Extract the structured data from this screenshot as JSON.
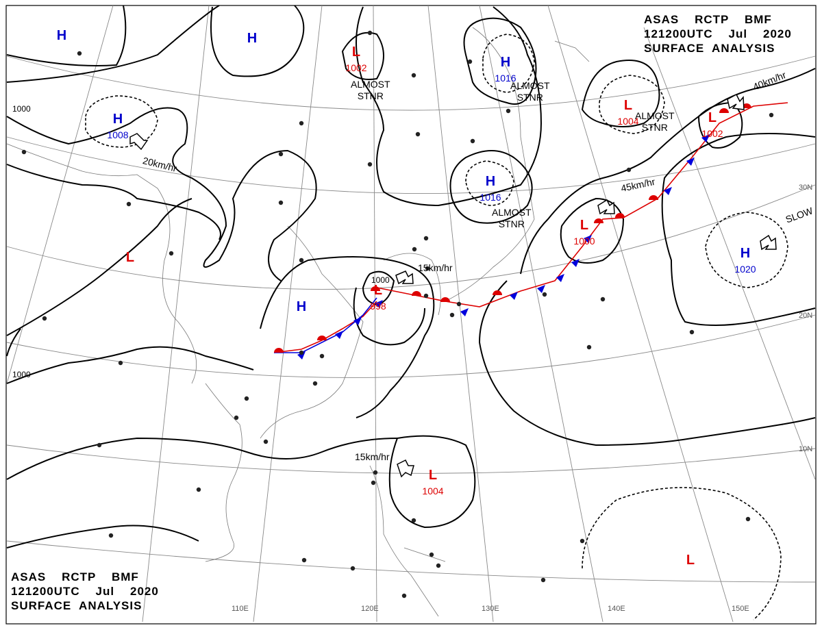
{
  "header": {
    "top_right": [
      "ASAS    RCTP    BMF",
      "121200UTC    Jul    2020",
      "SURFACE  ANALYSIS"
    ],
    "bottom_left": [
      "ASAS    RCTP    BMF",
      "121200UTC    Jul    2020",
      "SURFACE  ANALYSIS"
    ]
  },
  "longitudes": [
    "110E",
    "120E",
    "130E",
    "140E",
    "150E"
  ],
  "latitudes": [
    "30N",
    "20N",
    "10N"
  ],
  "isobar_labels": [
    "1000",
    "1000",
    "1000"
  ],
  "pressure_centers": [
    {
      "type": "H",
      "value": "",
      "color": "#0000cc"
    },
    {
      "type": "H",
      "value": "",
      "color": "#0000cc"
    },
    {
      "type": "L",
      "value": "1002",
      "color": "#dd0000"
    },
    {
      "type": "H",
      "value": "1016",
      "color": "#0000cc"
    },
    {
      "type": "H",
      "value": "1008",
      "color": "#0000cc"
    },
    {
      "type": "L",
      "value": "1004",
      "color": "#dd0000"
    },
    {
      "type": "L",
      "value": "1002",
      "color": "#dd0000"
    },
    {
      "type": "H",
      "value": "1016",
      "color": "#0000cc"
    },
    {
      "type": "L",
      "value": "",
      "color": "#dd0000"
    },
    {
      "type": "L",
      "value": "1000",
      "color": "#dd0000"
    },
    {
      "type": "H",
      "value": "1020",
      "color": "#0000cc"
    },
    {
      "type": "H",
      "value": "",
      "color": "#0000cc"
    },
    {
      "type": "L",
      "value": "998",
      "color": "#dd0000"
    },
    {
      "type": "L",
      "value": "1004",
      "color": "#dd0000"
    },
    {
      "type": "L",
      "value": "",
      "color": "#dd0000"
    }
  ],
  "annotations": {
    "almost_stnr": [
      "ALMOST",
      "STNR"
    ],
    "slow": "SLOW",
    "motions": [
      "20km/hr",
      "40km/hr",
      "45km/hr",
      "15km/hr",
      "15km/hr"
    ]
  },
  "colors": {
    "warm_front": "#dd0000",
    "cold_front": "#0000dd",
    "isobar": "#000000",
    "grid": "#888888"
  }
}
